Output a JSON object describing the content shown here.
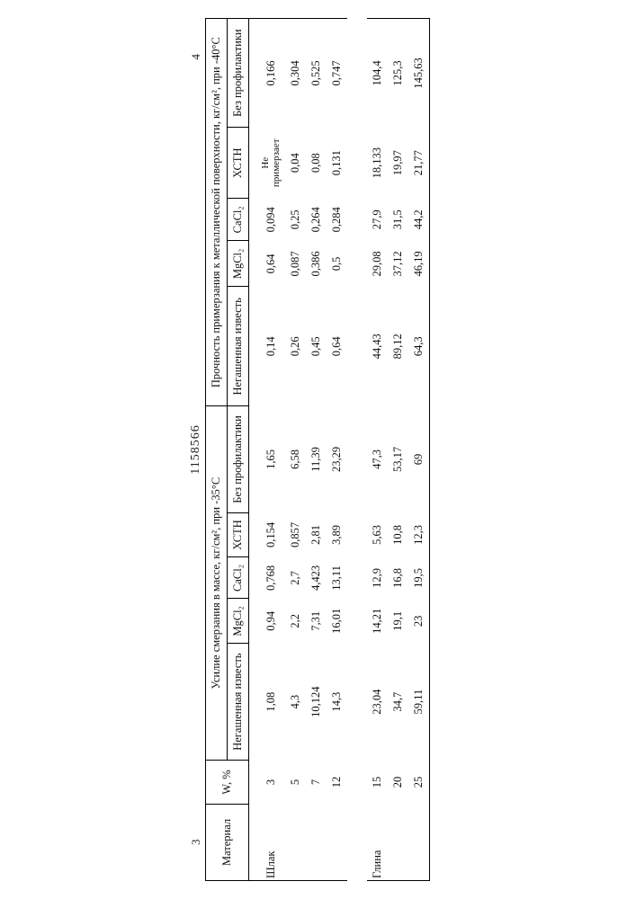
{
  "doc": {
    "page_left": "3",
    "page_right": "4",
    "number": "1158566"
  },
  "headers": {
    "material": "Материал",
    "w": "W, %",
    "block35": "Усилие смерзания в массе, кг/см², при -35°C",
    "block40": "Прочность примерзания к металлической поверхности, кг/см², при -40°C",
    "sub": {
      "negash": "Негашенная известь",
      "mgcl2": "MgCl₂",
      "cacl2": "CaCl₂",
      "hstn": "ХСТН",
      "noprof": "Без профилактики"
    },
    "hstn_note": "Не примерзает"
  },
  "materials": {
    "shlak": "Шлак",
    "glina": "Глина"
  },
  "rows": [
    {
      "mat": "shlak",
      "w": "3",
      "a": [
        "1,08",
        "0,94",
        "0,768",
        "0,154",
        "1,65"
      ],
      "b": [
        "0,14",
        "0,64",
        "0,094",
        "",
        "0,166"
      ]
    },
    {
      "mat": "",
      "w": "5",
      "a": [
        "4,3",
        "2,2",
        "2,7",
        "0,857",
        "6,58"
      ],
      "b": [
        "0,26",
        "0,087",
        "0,25",
        "0,04",
        "0,304"
      ]
    },
    {
      "mat": "",
      "w": "7",
      "a": [
        "10,124",
        "7,31",
        "4,423",
        "2,81",
        "11,39"
      ],
      "b": [
        "0,45",
        "0,386",
        "0,264",
        "0,08",
        "0,525"
      ]
    },
    {
      "mat": "",
      "w": "12",
      "a": [
        "14,3",
        "16,01",
        "13,11",
        "3,89",
        "23,29"
      ],
      "b": [
        "0,64",
        "0,5",
        "0,284",
        "0,131",
        "0,747"
      ]
    },
    {
      "mat": "glina",
      "w": "15",
      "a": [
        "23,04",
        "14,21",
        "12,9",
        "5,63",
        "47,3"
      ],
      "b": [
        "44,43",
        "29,08",
        "27,9",
        "18,133",
        "104,4"
      ]
    },
    {
      "mat": "",
      "w": "20",
      "a": [
        "34,7",
        "19,1",
        "16,8",
        "10,8",
        "53,17"
      ],
      "b": [
        "89,12",
        "37,12",
        "31,5",
        "19,97",
        "125,3"
      ]
    },
    {
      "mat": "",
      "w": "25",
      "a": [
        "59,11",
        "23",
        "19,5",
        "12,3",
        "69"
      ],
      "b": [
        "64,3",
        "46,19",
        "44,2",
        "21,77",
        "145,63"
      ]
    }
  ],
  "style": {
    "font_family": "Times New Roman",
    "font_size_pt": 10,
    "border_color": "#000000",
    "background": "#ffffff",
    "text_color": "#111111"
  }
}
